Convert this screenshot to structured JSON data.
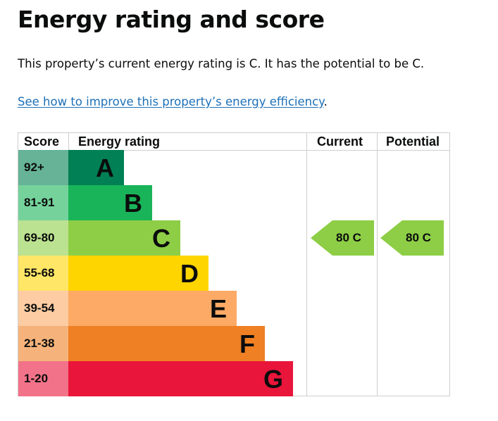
{
  "page": {
    "title": "Energy rating and score",
    "summary": "This property’s current energy rating is C. It has the potential to be C.",
    "improve_link": "See how to improve this property’s energy efficiency",
    "improve_link_suffix": "."
  },
  "table": {
    "headers": {
      "score": "Score",
      "rating": "Energy rating",
      "current": "Current",
      "potential": "Potential"
    },
    "bands": [
      {
        "range": "92+",
        "letter": "A",
        "color": "#008054",
        "score_bg": "#66b398"
      },
      {
        "range": "81-91",
        "letter": "B",
        "color": "#19b459",
        "score_bg": "#75d29b"
      },
      {
        "range": "69-80",
        "letter": "C",
        "color": "#8dce46",
        "score_bg": "#bbe290"
      },
      {
        "range": "55-68",
        "letter": "D",
        "color": "#ffd500",
        "score_bg": "#ffe666"
      },
      {
        "range": "39-54",
        "letter": "E",
        "color": "#fcaa65",
        "score_bg": "#fdcca3"
      },
      {
        "range": "21-38",
        "letter": "F",
        "color": "#ef8023",
        "score_bg": "#f5b37b"
      },
      {
        "range": "1-20",
        "letter": "G",
        "color": "#e9153b",
        "score_bg": "#f27389"
      }
    ],
    "current": {
      "label": "80  C",
      "value": 80,
      "rating": "C",
      "color": "#8dce46"
    },
    "potential": {
      "label": "80  C",
      "value": 80,
      "rating": "C",
      "color": "#8dce46"
    }
  }
}
